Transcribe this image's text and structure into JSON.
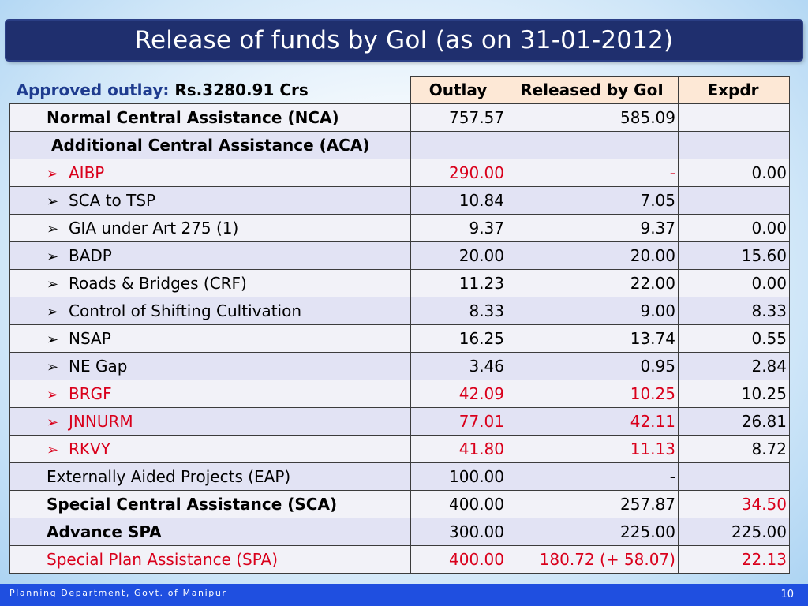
{
  "title": "Release of funds by GoI (as on 31-01-2012)",
  "header": {
    "approved_label": "Approved outlay:",
    "approved_value": "Rs.3280.91 Crs",
    "col_outlay": "Outlay",
    "col_released": "Released by GoI",
    "col_expdr": "Expdr"
  },
  "rows": [
    {
      "label": "Normal Central Assistance (NCA)",
      "outlay": "757.57",
      "released": "585.09",
      "expdr": ""
    },
    {
      "label": "Additional Central Assistance (ACA)",
      "outlay": "",
      "released": "",
      "expdr": ""
    },
    {
      "label": "AIBP",
      "outlay": "290.00",
      "released": "-",
      "expdr": "0.00"
    },
    {
      "label": "SCA to TSP",
      "outlay": "10.84",
      "released": "7.05",
      "expdr": ""
    },
    {
      "label": "GIA under Art 275 (1)",
      "outlay": "9.37",
      "released": "9.37",
      "expdr": "0.00"
    },
    {
      "label": "BADP",
      "outlay": "20.00",
      "released": "20.00",
      "expdr": "15.60"
    },
    {
      "label": "Roads & Bridges (CRF)",
      "outlay": "11.23",
      "released": "22.00",
      "expdr": "0.00"
    },
    {
      "label": "Control of Shifting Cultivation",
      "outlay": "8.33",
      "released": "9.00",
      "expdr": "8.33"
    },
    {
      "label": "NSAP",
      "outlay": "16.25",
      "released": "13.74",
      "expdr": "0.55"
    },
    {
      "label": "NE Gap",
      "outlay": "3.46",
      "released": "0.95",
      "expdr": "2.84"
    },
    {
      "label": "BRGF",
      "outlay": "42.09",
      "released": "10.25",
      "expdr": "10.25"
    },
    {
      "label": "JNNURM",
      "outlay": "77.01",
      "released": "42.11",
      "expdr": "26.81"
    },
    {
      "label": "RKVY",
      "outlay": "41.80",
      "released": "11.13",
      "expdr": "8.72"
    },
    {
      "label": "Externally Aided Projects (EAP)",
      "outlay": "100.00",
      "released": "-",
      "expdr": ""
    },
    {
      "label": "Special Central Assistance (SCA)",
      "outlay": "400.00",
      "released": "257.87",
      "expdr": "34.50"
    },
    {
      "label": "Advance SPA",
      "outlay": "300.00",
      "released": "225.00",
      "expdr": "225.00"
    },
    {
      "label": "Special Plan Assistance (SPA)",
      "outlay": "400.00",
      "released": "180.72 (+ 58.07)",
      "expdr": "22.13"
    }
  ],
  "bullet_icon": "arrow-bullet-icon",
  "footer": {
    "org": "Planning Department, Govt. of Manipur",
    "page_number": "10"
  },
  "colors": {
    "title_bar": "#1f2f6e",
    "footer_bar": "#1f4fe0",
    "highlight_red": "#d9001b",
    "header_fill": "#fde8d6"
  }
}
